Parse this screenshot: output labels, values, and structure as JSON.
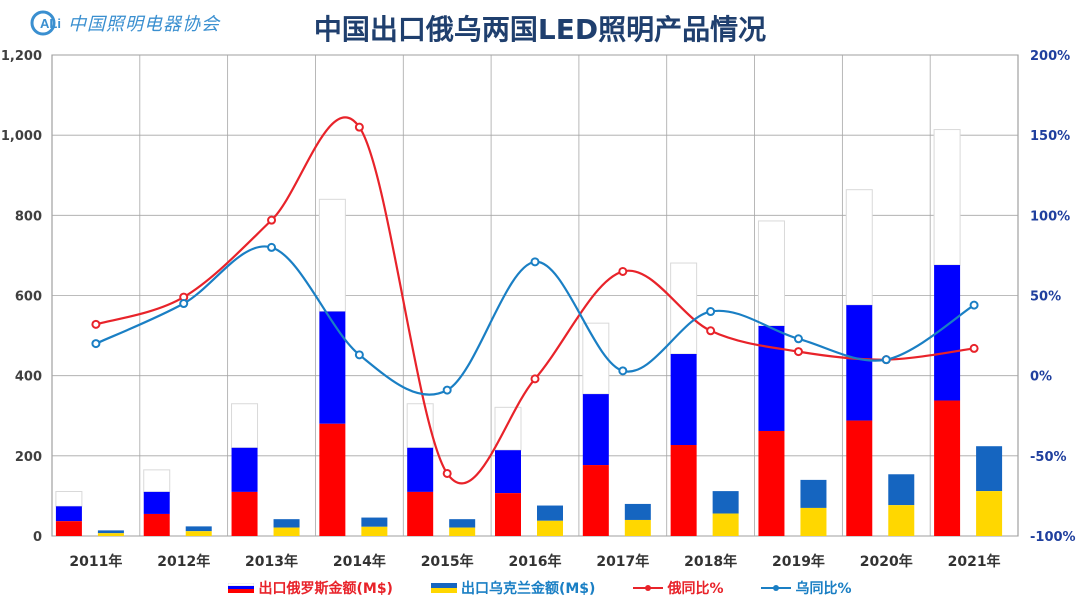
{
  "logo": {
    "text": "中国照明电器协会",
    "icon": "cali-logo-icon",
    "icon_text": "ALi"
  },
  "chart_data": {
    "type": "bar",
    "title": "中国出口俄乌两国LED照明产品情况",
    "categories": [
      "2011年",
      "2012年",
      "2013年",
      "2014年",
      "2015年",
      "2016年",
      "2017年",
      "2018年",
      "2019年",
      "2020年",
      "2021年"
    ],
    "left_axis": {
      "ylim": [
        0,
        1200
      ],
      "ticks": [
        "0",
        "200",
        "400",
        "600",
        "800",
        "1,000",
        "1,200"
      ]
    },
    "right_axis": {
      "ylim": [
        -100,
        200
      ],
      "ticks": [
        "-100%",
        "-50%",
        "0%",
        "50%",
        "100%",
        "150%",
        "200%"
      ]
    },
    "bar_series": [
      {
        "name": "出口俄罗斯金额(M$)",
        "values": [
          37,
          55,
          110,
          280,
          110,
          107,
          177,
          227,
          262,
          288,
          338
        ],
        "colors": {
          "outline": "#d9d9d9",
          "middle": "#0000ff",
          "bottom": "#ff0000"
        }
      },
      {
        "name": "出口乌克兰金额(M$)",
        "values": [
          7,
          12,
          21,
          23,
          21,
          38,
          40,
          56,
          70,
          77,
          112
        ],
        "colors": {
          "top": "#1565c0",
          "bottom": "#ffd700"
        }
      }
    ],
    "line_series": [
      {
        "name": "俄同比%",
        "values": [
          32,
          49,
          97,
          155,
          -61,
          -2,
          65,
          28,
          15,
          10,
          17
        ],
        "color": "#e8232a"
      },
      {
        "name": "乌同比%",
        "values": [
          20,
          45,
          80,
          13,
          -9,
          71,
          3,
          40,
          23,
          10,
          44
        ],
        "color": "#1a7fc4"
      }
    ],
    "grid": true,
    "legend_position": "bottom"
  }
}
